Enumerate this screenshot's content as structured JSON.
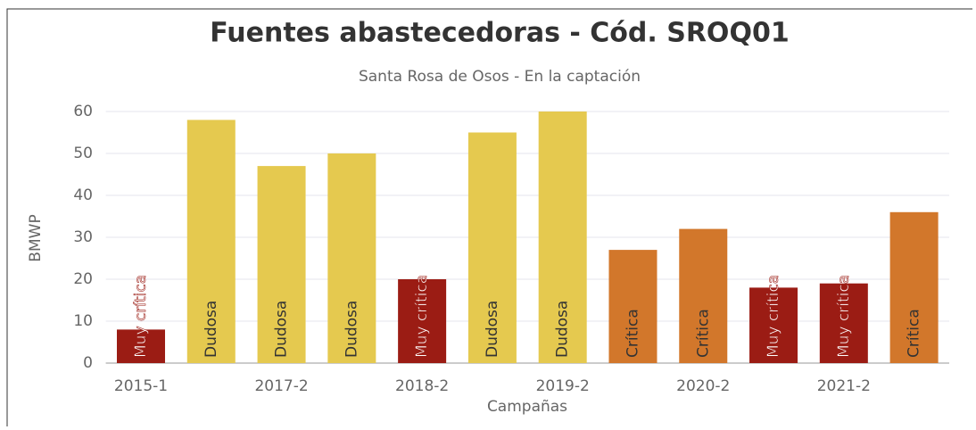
{
  "chart_data": {
    "type": "bar",
    "title": "Fuentes abastecedoras - Cód. SROQ01",
    "subtitle": "Santa Rosa de Osos - En la captación",
    "xlabel": "Campañas",
    "ylabel": "BMWP",
    "categories": [
      "2015-1",
      null,
      "2017-2",
      null,
      "2018-2",
      null,
      "2019-2",
      null,
      "2020-2",
      null,
      "2021-2",
      null
    ],
    "values": [
      8,
      58,
      47,
      50,
      20,
      55,
      60,
      27,
      32,
      18,
      19,
      36
    ],
    "bar_labels": [
      "Muy crítica",
      "Dudosa",
      "Dudosa",
      "Dudosa",
      "Muy crítica",
      "Dudosa",
      "Dudosa",
      "Crítica",
      "Crítica",
      "Muy crítica",
      "Muy crítica",
      "Crítica"
    ],
    "colors": [
      "#9b1c14",
      "#e5c94f",
      "#e5c94f",
      "#e5c94f",
      "#9b1c14",
      "#e5c94f",
      "#e5c94f",
      "#d2772b",
      "#d2772b",
      "#9b1c14",
      "#9b1c14",
      "#d2772b"
    ],
    "ylim": [
      0,
      60
    ],
    "yticks": [
      0,
      10,
      20,
      30,
      40,
      50,
      60
    ],
    "grid": true
  }
}
